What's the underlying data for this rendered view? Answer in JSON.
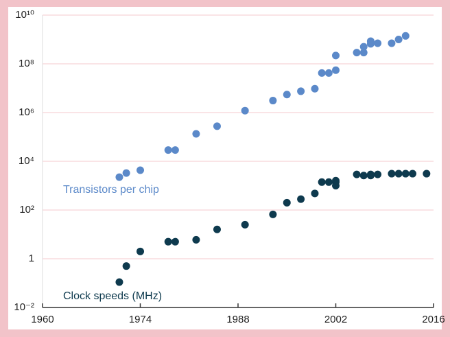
{
  "chart_data": {
    "type": "scatter",
    "log_y": true,
    "grid": true,
    "xlim": [
      1960,
      2016
    ],
    "xticks": [
      1960,
      1974,
      1988,
      2002,
      2016
    ],
    "ylim": [
      0.01,
      10000000000
    ],
    "yticks": [
      {
        "value": 0.01,
        "label": "10⁻²"
      },
      1,
      {
        "value": 100,
        "label": "10²"
      },
      {
        "value": 10000,
        "label": "10⁴"
      },
      {
        "value": 1000000,
        "label": "10⁶"
      },
      {
        "value": 100000000,
        "label": "10⁸"
      },
      {
        "value": 10000000000,
        "label": "10¹⁰"
      }
    ],
    "annotations": [
      "Transistors per chip",
      "Clock speeds (MHz)"
    ],
    "series": [
      {
        "name": "Transistors per chip",
        "color": "#5b89c9",
        "x": [
          1971,
          1972,
          1974,
          1978,
          1979,
          1982,
          1985,
          1989,
          1993,
          1995,
          1997,
          1999,
          2000,
          2001,
          2002,
          2002,
          2005,
          2006,
          2006,
          2007,
          2007,
          2008,
          2010,
          2011,
          2012
        ],
        "values": [
          2240,
          3300,
          4300,
          29000,
          29000,
          134000,
          275000,
          1200000,
          3100000,
          5500000,
          7500000,
          9500000,
          42000000,
          42000000,
          55000000,
          220000000,
          290000000,
          290000000,
          500000000,
          660000000,
          850000000,
          700000000,
          700000000,
          1000000000,
          1400000000
        ]
      },
      {
        "name": "Clock speeds (MHz)",
        "color": "#0e3a4e",
        "x": [
          1971,
          1972,
          1974,
          1978,
          1979,
          1982,
          1985,
          1989,
          1993,
          1995,
          1997,
          1999,
          2000,
          2001,
          2002,
          2002,
          2002,
          2005,
          2006,
          2007,
          2007,
          2008,
          2010,
          2011,
          2012,
          2013,
          2015
        ],
        "values": [
          0.11,
          0.5,
          2,
          5,
          5,
          6,
          16,
          25,
          66,
          200,
          280,
          480,
          1400,
          1400,
          1400,
          1000,
          1600,
          2900,
          2600,
          2600,
          2900,
          2900,
          3100,
          3100,
          3100,
          3100,
          3100
        ]
      }
    ]
  }
}
